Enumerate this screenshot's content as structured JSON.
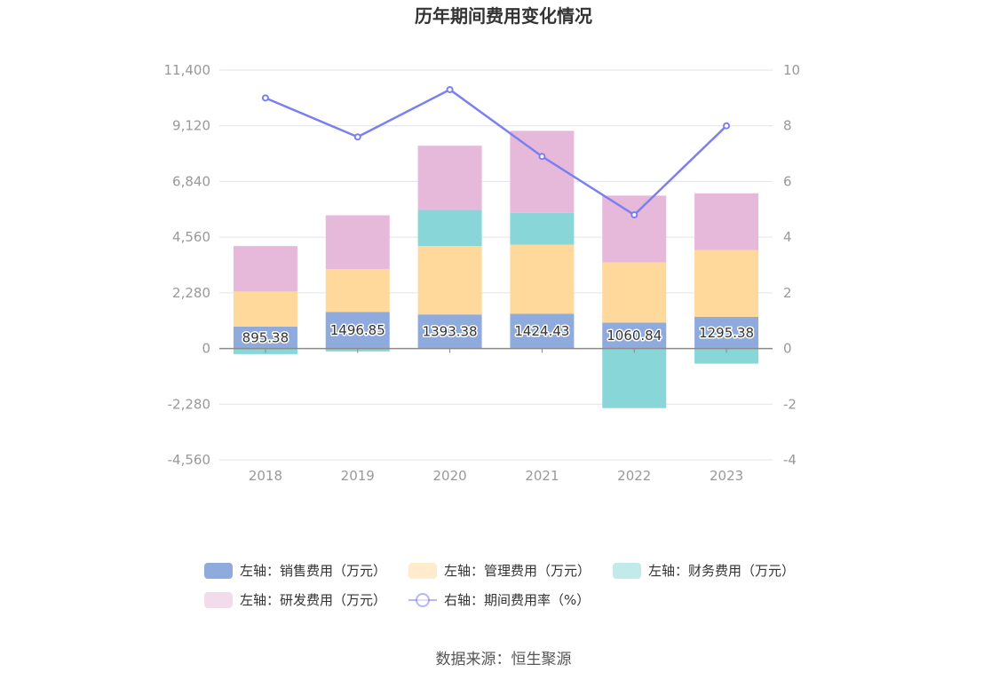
{
  "chart_data": {
    "type": "bar",
    "title": "历年期间费用变化情况",
    "categories": [
      "2018",
      "2019",
      "2020",
      "2021",
      "2022",
      "2023"
    ],
    "left_axis": {
      "ylim": [
        -4560,
        11400
      ],
      "ticks": [
        11400,
        9120,
        6840,
        4560,
        2280,
        0,
        -2280,
        -4560
      ],
      "tick_labels": [
        "11,400",
        "9,120",
        "6,840",
        "4,560",
        "2,280",
        "0",
        "-2,280",
        "-4,560"
      ]
    },
    "right_axis": {
      "ylim": [
        -4,
        10
      ],
      "ticks": [
        10,
        8,
        6,
        4,
        2,
        0,
        -2,
        -4
      ],
      "tick_labels": [
        "10",
        "8",
        "6",
        "4",
        "2",
        "0",
        "-2",
        "-4"
      ]
    },
    "series": [
      {
        "name": "左轴：销售费用（万元）",
        "type": "bar",
        "axis": "left",
        "color": "#8faadc",
        "values": [
          895.38,
          1496.85,
          1393.38,
          1424.43,
          1060.84,
          1295.38
        ],
        "labels": [
          "895.38",
          "1496.85",
          "1393.38",
          "1424.43",
          "1060.84",
          "1295.38"
        ]
      },
      {
        "name": "左轴：管理费用（万元）",
        "type": "bar",
        "axis": "left",
        "color": "#ffd99b",
        "values": [
          1440,
          1760,
          2800,
          2830,
          2460,
          2730
        ]
      },
      {
        "name": "左轴：财务费用（万元）",
        "type": "bar",
        "axis": "left",
        "color": "#88d6d8",
        "values": [
          -230,
          -120,
          1480,
          1300,
          -2440,
          -620
        ]
      },
      {
        "name": "左轴：研发费用（万元）",
        "type": "bar",
        "axis": "left",
        "color": "#e6b9da",
        "values": [
          1860,
          2200,
          2630,
          3360,
          2740,
          2330
        ]
      },
      {
        "name": "右轴：期间费用率（%）",
        "type": "line",
        "axis": "right",
        "color": "#7b7ff0",
        "values": [
          9.0,
          7.6,
          9.3,
          6.9,
          4.8,
          8.0
        ]
      }
    ],
    "grid": true,
    "legend_position": "bottom"
  },
  "footer": {
    "source": "数据来源：恒生聚源"
  }
}
